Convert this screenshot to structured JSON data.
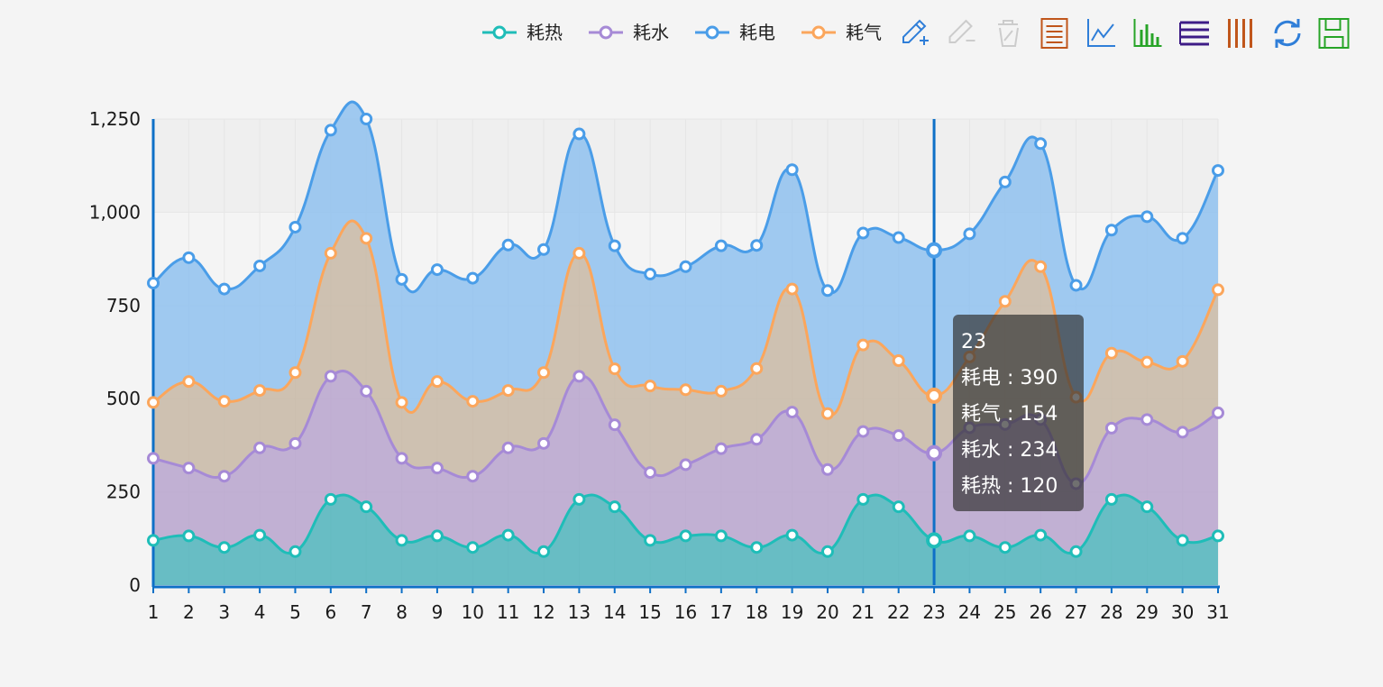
{
  "chart_data": {
    "type": "area",
    "stacked": true,
    "smooth": true,
    "x": [
      "1",
      "2",
      "3",
      "4",
      "5",
      "6",
      "7",
      "8",
      "9",
      "10",
      "11",
      "12",
      "13",
      "14",
      "15",
      "16",
      "17",
      "18",
      "19",
      "20",
      "21",
      "22",
      "23",
      "24",
      "25",
      "26",
      "27",
      "28",
      "29",
      "30",
      "31"
    ],
    "y_ticks": [
      "0",
      "250",
      "500",
      "750",
      "1,000",
      "1,250"
    ],
    "ylim": [
      0,
      1250
    ],
    "legend": {
      "position": "top-right",
      "order": [
        "耗热",
        "耗水",
        "耗电",
        "耗气"
      ]
    },
    "series": [
      {
        "name": "耗热",
        "color": "#1fbdb8",
        "fill": "#4fb3bb",
        "values": [
          120,
          132,
          101,
          134,
          90,
          230,
          210,
          120,
          132,
          101,
          134,
          90,
          230,
          210,
          120,
          132,
          132,
          101,
          134,
          90,
          230,
          210,
          120,
          132,
          101,
          134,
          90,
          230,
          210,
          120,
          132
        ]
      },
      {
        "name": "耗水",
        "color": "#a68ad6",
        "fill": "#b7a3cd",
        "values": [
          220,
          182,
          191,
          234,
          290,
          330,
          310,
          220,
          182,
          191,
          234,
          290,
          330,
          220,
          182,
          191,
          234,
          290,
          330,
          220,
          182,
          191,
          234,
          290,
          330,
          310,
          182,
          191,
          234,
          290,
          330
        ]
      },
      {
        "name": "耗气",
        "color": "#fba65c",
        "fill": "#c7b7a5",
        "values": [
          150,
          232,
          201,
          154,
          190,
          330,
          410,
          150,
          232,
          201,
          154,
          190,
          330,
          150,
          232,
          201,
          154,
          190,
          330,
          150,
          232,
          201,
          154,
          190,
          330,
          410,
          232,
          201,
          154,
          190,
          330
        ]
      },
      {
        "name": "耗电",
        "color": "#4a9de8",
        "fill": "#8fc1ef",
        "values": [
          320,
          332,
          301,
          334,
          390,
          330,
          320,
          330,
          300,
          330,
          390,
          330,
          320,
          330,
          300,
          330,
          390,
          330,
          320,
          330,
          300,
          330,
          390,
          330,
          320,
          330,
          300,
          330,
          390,
          330,
          320
        ]
      }
    ],
    "tooltip": {
      "title": "23",
      "rows": [
        {
          "name": "耗电",
          "value": "390"
        },
        {
          "name": "耗气",
          "value": "154"
        },
        {
          "name": "耗水",
          "value": "234"
        },
        {
          "name": "耗热",
          "value": "120"
        }
      ],
      "x_index": 22
    }
  },
  "toolbox": [
    {
      "icon": "area-zoom-icon",
      "color": "#2f7ed8"
    },
    {
      "icon": "zoom-reset-icon",
      "color": "#cccccc"
    },
    {
      "icon": "clear-icon",
      "color": "#cccccc"
    },
    {
      "icon": "data-view-icon",
      "color": "#c0561b"
    },
    {
      "icon": "line-chart-icon",
      "color": "#2f7ed8"
    },
    {
      "icon": "bar-chart-icon",
      "color": "#27a427"
    },
    {
      "icon": "stack-icon",
      "color": "#3d1b86"
    },
    {
      "icon": "tiled-icon",
      "color": "#c0561b"
    },
    {
      "icon": "restore-icon",
      "color": "#2f7ed8"
    },
    {
      "icon": "save-image-icon",
      "color": "#27a427"
    }
  ]
}
